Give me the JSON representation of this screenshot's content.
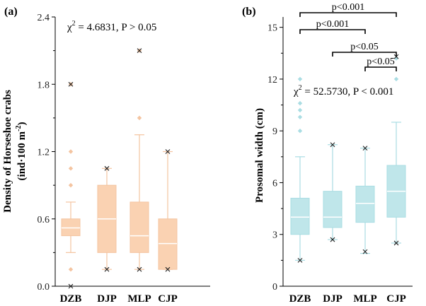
{
  "chart_data": [
    {
      "type": "box",
      "panel_label": "(a)",
      "ylabel_parts": [
        "Density of Horseshoe crabs",
        "(ind·100 m",
        "-2",
        ")"
      ],
      "ylim": [
        0,
        2.4
      ],
      "yticks": [
        "0.0",
        "0.6",
        "1.2",
        "1.8",
        "2.4"
      ],
      "categories": [
        "DZB",
        "DJP",
        "MLP",
        "CJP"
      ],
      "annotation": [
        "χ",
        "2",
        " = 4.6831, P > 0.05"
      ],
      "box_color": "#fad2b2",
      "whisker_color": "#f4c4a0",
      "boxes": [
        {
          "q1": 0.45,
          "median": 0.52,
          "q3": 0.6,
          "whisker_low": 0.3,
          "whisker_high": 0.75,
          "outliers": [
            0.15,
            0.9,
            1.05,
            1.2,
            1.8
          ],
          "min_marker": 0.0,
          "max_marker": 1.8
        },
        {
          "q1": 0.3,
          "median": 0.6,
          "q3": 0.9,
          "whisker_low": 0.15,
          "whisker_high": 1.05,
          "outliers": [],
          "min_marker": 0.15,
          "max_marker": 1.05
        },
        {
          "q1": 0.3,
          "median": 0.45,
          "q3": 0.75,
          "whisker_low": 0.15,
          "whisker_high": 1.35,
          "outliers": [
            1.5,
            2.1
          ],
          "min_marker": 0.15,
          "max_marker": 2.1
        },
        {
          "q1": 0.15,
          "median": 0.38,
          "q3": 0.6,
          "whisker_low": 0.15,
          "whisker_high": 1.2,
          "outliers": [],
          "min_marker": 0.15,
          "max_marker": 1.2
        }
      ]
    },
    {
      "type": "box",
      "panel_label": "(b)",
      "ylabel_parts": [
        "Prosomal width (cm)"
      ],
      "ylim": [
        0,
        15.6
      ],
      "yticks": [
        "0",
        "3",
        "6",
        "9",
        "12",
        "15"
      ],
      "categories": [
        "DZB",
        "DJP",
        "MLP",
        "CJP"
      ],
      "annotation": [
        "χ",
        "2",
        " = 52.5730, P < 0.001"
      ],
      "box_color": "#bfe6ea",
      "whisker_color": "#aadde3",
      "boxes": [
        {
          "q1": 3.0,
          "median": 4.0,
          "q3": 5.1,
          "whisker_low": 1.5,
          "whisker_high": 7.5,
          "outliers": [
            9.0,
            9.8,
            10.2,
            10.6,
            12.0
          ],
          "min_marker": 1.5,
          "max_marker": null
        },
        {
          "q1": 3.4,
          "median": 4.0,
          "q3": 5.5,
          "whisker_low": 2.7,
          "whisker_high": 8.2,
          "outliers": [],
          "min_marker": 2.7,
          "max_marker": 8.2
        },
        {
          "q1": 3.7,
          "median": 4.8,
          "q3": 5.8,
          "whisker_low": 1.9,
          "whisker_high": 8.0,
          "outliers": [],
          "min_marker": 2.0,
          "max_marker": 8.0
        },
        {
          "q1": 4.0,
          "median": 5.5,
          "q3": 7.0,
          "whisker_low": 2.5,
          "whisker_high": 9.5,
          "outliers": [
            12.0,
            13.2
          ],
          "min_marker": 2.5,
          "max_marker": 13.3
        }
      ],
      "significance": [
        {
          "from": 2,
          "to": 3,
          "label": "p<0.05"
        },
        {
          "from": 1,
          "to": 3,
          "label": "p<0.05"
        },
        {
          "from": 0,
          "to": 2,
          "label": "p<0.001"
        },
        {
          "from": 0,
          "to": 3,
          "label": "p<0.001"
        }
      ]
    }
  ]
}
